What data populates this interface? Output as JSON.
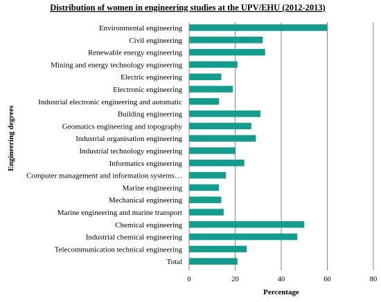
{
  "chart_data": {
    "type": "bar",
    "orientation": "horizontal",
    "title": "Distribution of women in engineering studies at the UPV/EHU (2012-2013)",
    "xlabel": "Percentage",
    "ylabel": "Engineering degrees",
    "xlim": [
      0,
      80
    ],
    "xticks": [
      0,
      20,
      40,
      60,
      80
    ],
    "grid": "vertical",
    "bar_color": "#149c8e",
    "categories": [
      "Environmental engineering",
      "Civil engineering",
      "Renewable energy engineering",
      "Mining and energy technology engineering",
      "Electric engineering",
      "Electronic engineering",
      "Industrial electronic engineering and automatic",
      "Building engineering",
      "Geomatics engineering and topography",
      "Industrial organisation engineering",
      "Industrial technology engineering",
      "Informatics engineering",
      "Computer management and information systems…",
      "Marine engineering",
      "Mechanical engineering",
      "Marine engineering and marine transport",
      "Chemical engineering",
      "Industrial chemical engineering",
      "Telecommunication technical engineering",
      "Total"
    ],
    "values": [
      60,
      32,
      33,
      21,
      14,
      19,
      13,
      31,
      27,
      29,
      20,
      24,
      16,
      13,
      14,
      15,
      50,
      47,
      25,
      21
    ]
  }
}
